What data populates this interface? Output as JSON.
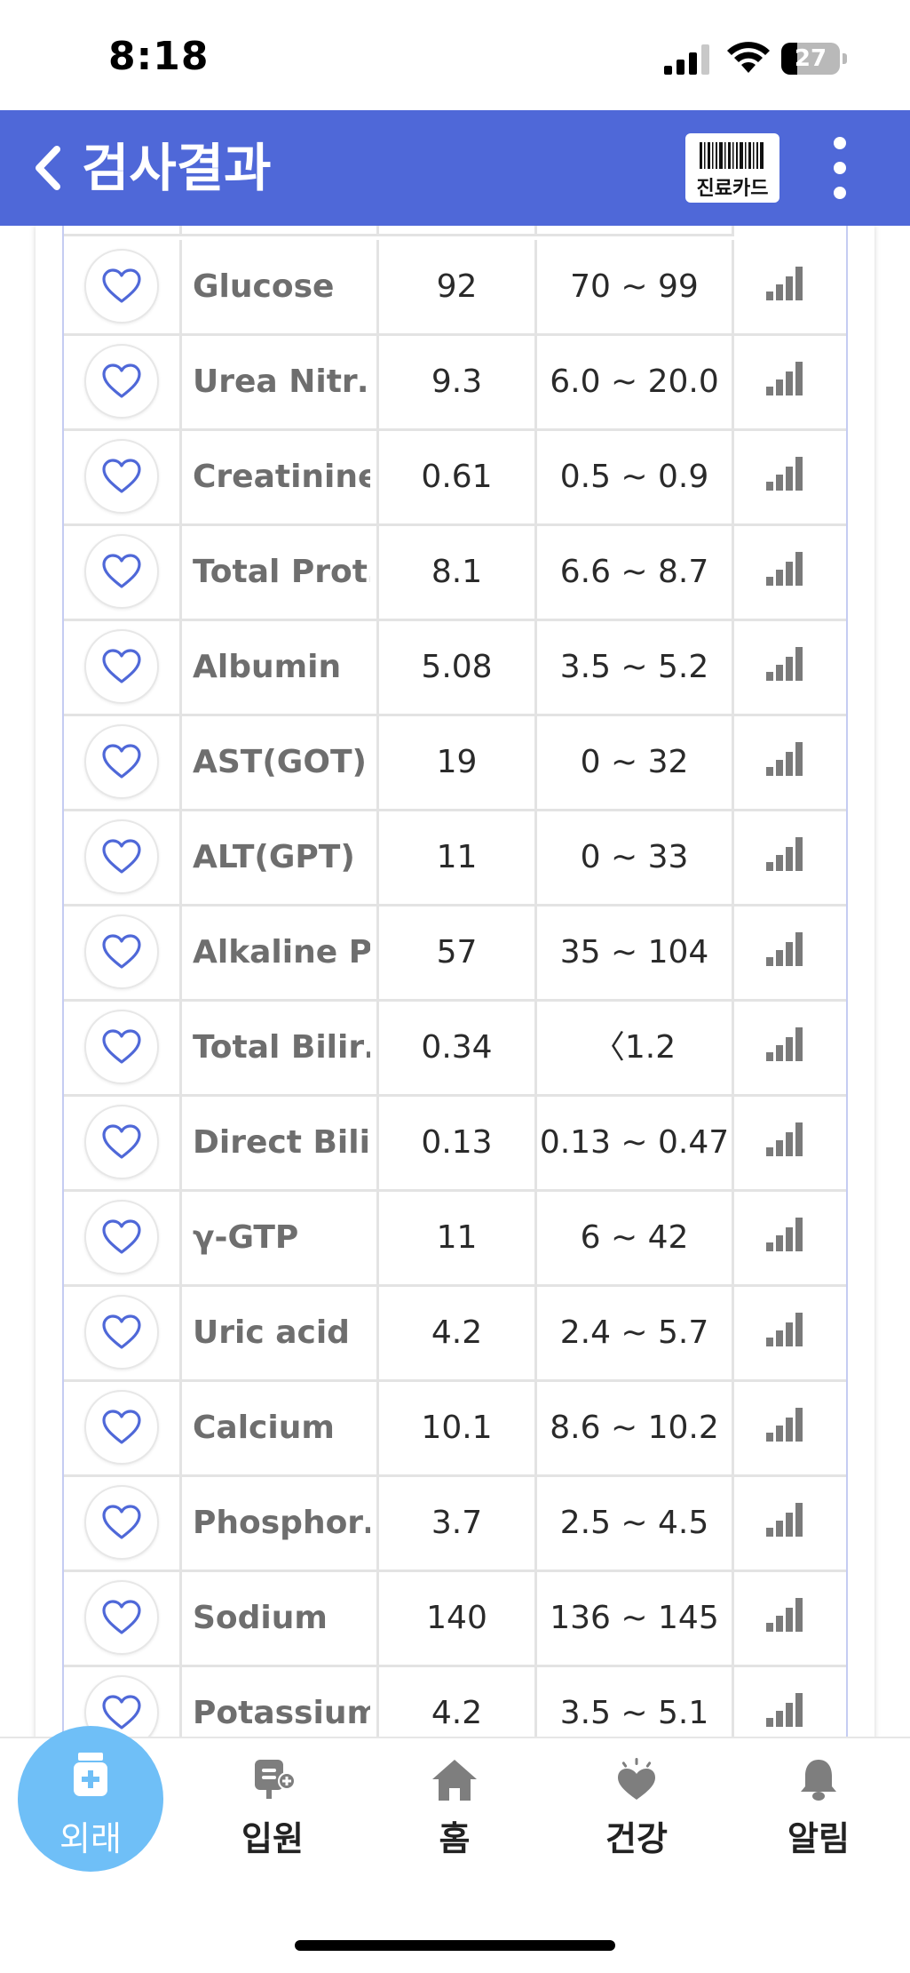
{
  "status_bar": {
    "time": "8:18",
    "battery": "27",
    "battery_level": 0.27
  },
  "header": {
    "title": "검사결과",
    "card_button_label": "진료카드"
  },
  "results": [
    {
      "name": "Glucose",
      "value": "92",
      "range": "70 ~ 99"
    },
    {
      "name": "Urea Nitr…",
      "value": "9.3",
      "range": "6.0 ~ 20.0"
    },
    {
      "name": "Creatinine",
      "value": "0.61",
      "range": "0.5 ~ 0.9"
    },
    {
      "name": "Total Prot…",
      "value": "8.1",
      "range": "6.6 ~ 8.7"
    },
    {
      "name": "Albumin",
      "value": "5.08",
      "range": "3.5 ~ 5.2"
    },
    {
      "name": "AST(GOT)",
      "value": "19",
      "range": "0 ~ 32"
    },
    {
      "name": "ALT(GPT)",
      "value": "11",
      "range": "0 ~ 33"
    },
    {
      "name": "Alkaline P…",
      "value": "57",
      "range": "35 ~ 104"
    },
    {
      "name": "Total Bilir…",
      "value": "0.34",
      "range": "〈1.2"
    },
    {
      "name": "Direct Bili…",
      "value": "0.13",
      "range": "0.13 ~ 0.47"
    },
    {
      "name": "γ-GTP",
      "value": "11",
      "range": "6 ~ 42"
    },
    {
      "name": "Uric acid",
      "value": "4.2",
      "range": "2.4 ~ 5.7"
    },
    {
      "name": "Calcium",
      "value": "10.1",
      "range": "8.6 ~ 10.2"
    },
    {
      "name": "Phosphor…",
      "value": "3.7",
      "range": "2.5 ~ 4.5"
    },
    {
      "name": "Sodium",
      "value": "140",
      "range": "136 ~ 145"
    },
    {
      "name": "Potassium",
      "value": "4.2",
      "range": "3.5 ~ 5.1"
    }
  ],
  "nav": {
    "outpatient": "외래",
    "inpatient": "입원",
    "home": "홈",
    "health": "건강",
    "alerts": "알림"
  },
  "colors": {
    "header": "#4f68d8",
    "accent_heart": "#4f68d8",
    "active_tab": "#6fbff7",
    "graph_icon": "#7a7a7a"
  }
}
